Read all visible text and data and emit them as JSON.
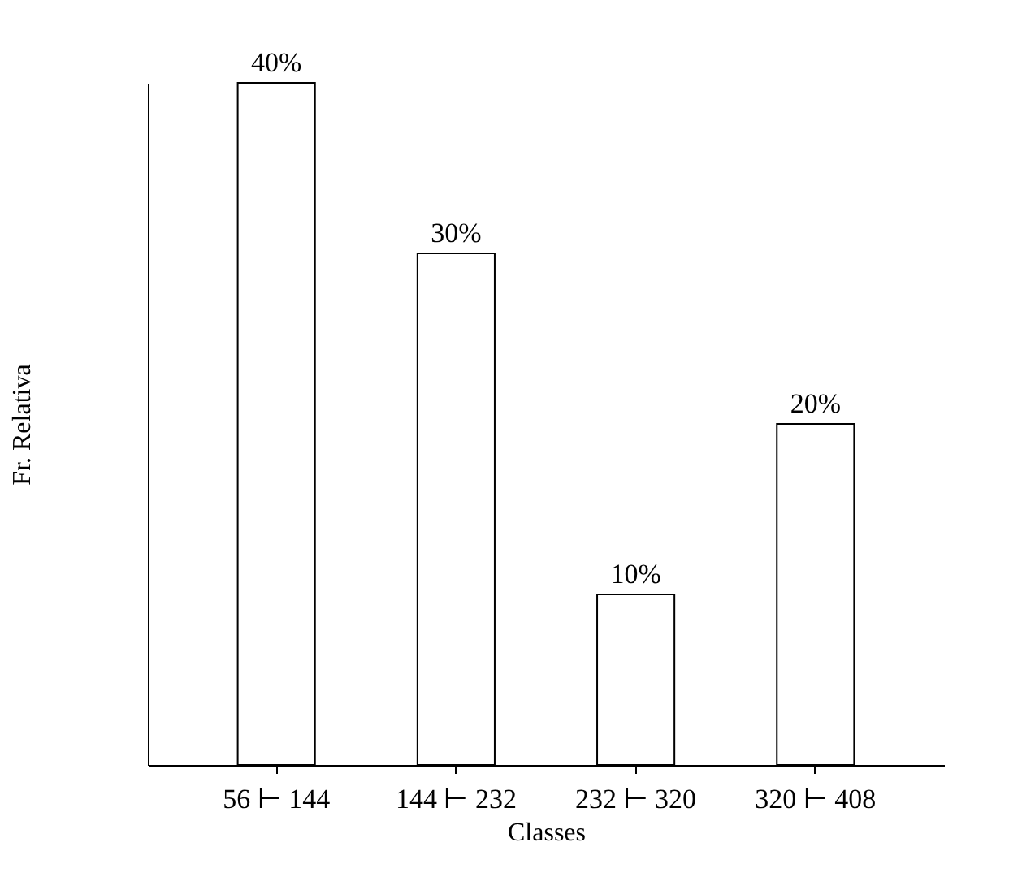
{
  "chart_data": {
    "type": "bar",
    "xlabel": "Classes",
    "ylabel": "Fr. Relativa",
    "categories": [
      "56 ⊢ 144",
      "144 ⊢ 232",
      "232 ⊢ 320",
      "320 ⊢ 408"
    ],
    "values": [
      40,
      30,
      10,
      20
    ],
    "value_labels": [
      "40%",
      "30%",
      "10%",
      "20%"
    ],
    "color": "#ffffff",
    "ylim": [
      0,
      40
    ],
    "tick_labels": "x",
    "grid": false
  }
}
